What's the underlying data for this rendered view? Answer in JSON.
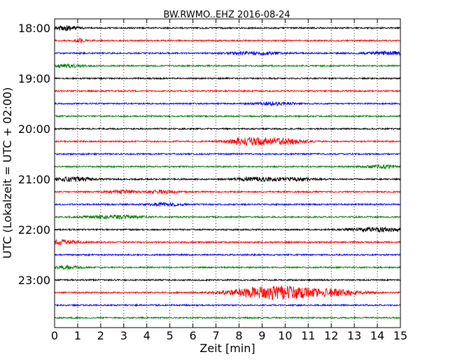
{
  "chart_data": {
    "type": "line",
    "title": "BW.RWMO..EHZ 2016-08-24",
    "xlabel": "Zeit  [min]",
    "ylabel": "UTC (Lokalzeit = UTC + 02:00)",
    "xlim": [
      0,
      15
    ],
    "x_ticks": [
      "0",
      "1",
      "2",
      "3",
      "4",
      "5",
      "6",
      "7",
      "8",
      "9",
      "10",
      "11",
      "12",
      "13",
      "14",
      "15"
    ],
    "y_tick_labels": [
      "18:00",
      "19:00",
      "20:00",
      "21:00",
      "22:00",
      "23:00"
    ],
    "grid": "vertical dotted",
    "colors": [
      "#000000",
      "#ff0000",
      "#0000ff",
      "#008000"
    ],
    "traces": [
      {
        "start": "18:00",
        "color": "#000000",
        "events": [
          [
            0.6,
            0.5,
            3
          ]
        ]
      },
      {
        "start": "18:15",
        "color": "#ff0000",
        "events": [
          [
            1.1,
            0.2,
            2.5
          ]
        ]
      },
      {
        "start": "18:30",
        "color": "#0000ff",
        "events": [
          [
            8.7,
            1.2,
            2
          ],
          [
            14.5,
            1.0,
            2
          ]
        ]
      },
      {
        "start": "18:45",
        "color": "#008000",
        "events": [
          [
            0.5,
            0.8,
            2
          ]
        ]
      },
      {
        "start": "19:00",
        "color": "#000000",
        "events": []
      },
      {
        "start": "19:15",
        "color": "#ff0000",
        "events": []
      },
      {
        "start": "19:30",
        "color": "#0000ff",
        "events": [
          [
            9.5,
            0.8,
            2
          ]
        ]
      },
      {
        "start": "19:45",
        "color": "#008000",
        "events": []
      },
      {
        "start": "20:00",
        "color": "#000000",
        "events": []
      },
      {
        "start": "20:15",
        "color": "#ff0000",
        "events": [
          [
            8.2,
            0.6,
            3.5
          ],
          [
            9.0,
            1.2,
            3.5
          ],
          [
            10.0,
            0.8,
            2.5
          ]
        ]
      },
      {
        "start": "20:30",
        "color": "#0000ff",
        "events": []
      },
      {
        "start": "20:45",
        "color": "#008000",
        "events": [
          [
            14.3,
            0.8,
            2
          ]
        ]
      },
      {
        "start": "21:00",
        "color": "#000000",
        "events": [
          [
            0.8,
            1.0,
            2.5
          ],
          [
            8.8,
            1.0,
            2.5
          ],
          [
            10.6,
            0.8,
            2
          ]
        ]
      },
      {
        "start": "21:15",
        "color": "#ff0000",
        "events": [
          [
            2.9,
            0.6,
            2
          ],
          [
            4.6,
            0.6,
            2
          ]
        ]
      },
      {
        "start": "21:30",
        "color": "#0000ff",
        "events": [
          [
            4.8,
            0.8,
            2
          ]
        ]
      },
      {
        "start": "21:45",
        "color": "#008000",
        "events": [
          [
            2.6,
            1.2,
            2.5
          ]
        ]
      },
      {
        "start": "22:00",
        "color": "#000000",
        "events": [
          [
            14.0,
            1.2,
            2.5
          ]
        ]
      },
      {
        "start": "22:15",
        "color": "#ff0000",
        "events": [
          [
            0.2,
            0.8,
            3
          ]
        ]
      },
      {
        "start": "22:30",
        "color": "#0000ff",
        "events": []
      },
      {
        "start": "22:45",
        "color": "#008000",
        "events": [
          [
            0.5,
            0.6,
            2
          ]
        ]
      },
      {
        "start": "23:00",
        "color": "#000000",
        "events": []
      },
      {
        "start": "23:15",
        "color": "#ff0000",
        "events": [
          [
            8.7,
            1.5,
            4
          ],
          [
            9.8,
            1.3,
            6
          ],
          [
            11.0,
            1.3,
            3
          ],
          [
            12.4,
            1.0,
            3
          ]
        ]
      },
      {
        "start": "23:30",
        "color": "#0000ff",
        "events": []
      },
      {
        "start": "23:45",
        "color": "#008000",
        "events": []
      }
    ]
  }
}
